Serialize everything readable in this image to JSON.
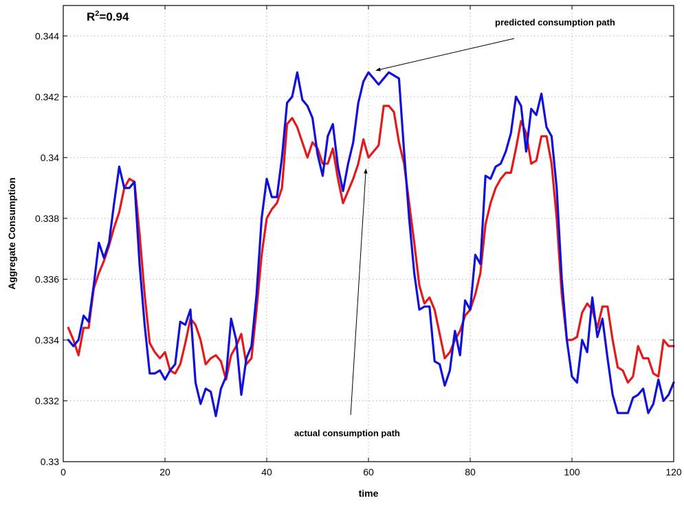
{
  "chart_data": {
    "type": "line",
    "xlabel": "time",
    "ylabel": "Aggregate Consumption",
    "xlim": [
      0,
      120
    ],
    "ylim": [
      0.33,
      0.345
    ],
    "x_ticks": [
      0,
      20,
      40,
      60,
      80,
      100,
      120
    ],
    "y_ticks": [
      0.33,
      0.332,
      0.334,
      0.336,
      0.338,
      0.34,
      0.342,
      0.344
    ],
    "y_tick_labels": [
      "0.33",
      "0.332",
      "0.334",
      "0.336",
      "0.338",
      "0.34",
      "0.342",
      "0.344"
    ],
    "grid": true,
    "r2_text": "R",
    "r2_superscript": "2",
    "r2_value": "=0.94",
    "annotations": [
      {
        "text": "predicted consumption path",
        "points_to_series": "predicted"
      },
      {
        "text": "actual consumption path",
        "points_to_series": "actual"
      }
    ],
    "series": [
      {
        "key": "actual",
        "color": "#e31a1c",
        "x": [
          1,
          2,
          3,
          4,
          5,
          6,
          7,
          8,
          9,
          10,
          11,
          12,
          13,
          14,
          15,
          16,
          17,
          18,
          19,
          20,
          21,
          22,
          23,
          24,
          25,
          26,
          27,
          28,
          29,
          30,
          31,
          32,
          33,
          34,
          35,
          36,
          37,
          38,
          39,
          40,
          41,
          42,
          43,
          44,
          45,
          46,
          47,
          48,
          49,
          50,
          51,
          52,
          53,
          54,
          55,
          56,
          57,
          58,
          59,
          60,
          61,
          62,
          63,
          64,
          65,
          66,
          67,
          68,
          69,
          70,
          71,
          72,
          73,
          74,
          75,
          76,
          77,
          78,
          79,
          80,
          81,
          82,
          83,
          84,
          85,
          86,
          87,
          88,
          89,
          90,
          91,
          92,
          93,
          94,
          95,
          96,
          97,
          98,
          99,
          100,
          101,
          102,
          103,
          104,
          105,
          106,
          107,
          108,
          109,
          110,
          111,
          112,
          113,
          114,
          115,
          116,
          117,
          118,
          119,
          120
        ],
        "values": [
          0.3344,
          0.334,
          0.3335,
          0.3344,
          0.3344,
          0.3357,
          0.3362,
          0.3366,
          0.3371,
          0.3377,
          0.3382,
          0.339,
          0.3393,
          0.3392,
          0.3375,
          0.3355,
          0.3339,
          0.3336,
          0.3334,
          0.3336,
          0.333,
          0.3329,
          0.3332,
          0.3339,
          0.3347,
          0.3345,
          0.334,
          0.3332,
          0.3334,
          0.3335,
          0.3333,
          0.3327,
          0.3335,
          0.3338,
          0.3342,
          0.3332,
          0.3334,
          0.335,
          0.3368,
          0.338,
          0.3383,
          0.3385,
          0.339,
          0.3411,
          0.3413,
          0.341,
          0.3405,
          0.34,
          0.3405,
          0.3403,
          0.3398,
          0.3398,
          0.3403,
          0.3393,
          0.3385,
          0.3389,
          0.3393,
          0.3398,
          0.3406,
          0.34,
          0.3402,
          0.3404,
          0.3417,
          0.3417,
          0.3415,
          0.3405,
          0.3398,
          0.3385,
          0.3372,
          0.3358,
          0.3352,
          0.3354,
          0.335,
          0.3342,
          0.3334,
          0.3336,
          0.334,
          0.3343,
          0.3348,
          0.335,
          0.3355,
          0.3362,
          0.3378,
          0.3385,
          0.339,
          0.3393,
          0.3395,
          0.3395,
          0.3403,
          0.3412,
          0.3408,
          0.3398,
          0.3399,
          0.3407,
          0.3407,
          0.3398,
          0.338,
          0.3355,
          0.334,
          0.334,
          0.3341,
          0.3349,
          0.3352,
          0.335,
          0.3344,
          0.3351,
          0.3351,
          0.334,
          0.3331,
          0.333,
          0.3326,
          0.3328,
          0.3338,
          0.3334,
          0.3334,
          0.3329,
          0.3328,
          0.334,
          0.3338,
          0.3338
        ]
      },
      {
        "key": "predicted",
        "color": "#1010d8",
        "x": [
          1,
          2,
          3,
          4,
          5,
          6,
          7,
          8,
          9,
          10,
          11,
          12,
          13,
          14,
          15,
          16,
          17,
          18,
          19,
          20,
          21,
          22,
          23,
          24,
          25,
          26,
          27,
          28,
          29,
          30,
          31,
          32,
          33,
          34,
          35,
          36,
          37,
          38,
          39,
          40,
          41,
          42,
          43,
          44,
          45,
          46,
          47,
          48,
          49,
          50,
          51,
          52,
          53,
          54,
          55,
          56,
          57,
          58,
          59,
          60,
          61,
          62,
          63,
          64,
          65,
          66,
          67,
          68,
          69,
          70,
          71,
          72,
          73,
          74,
          75,
          76,
          77,
          78,
          79,
          80,
          81,
          82,
          83,
          84,
          85,
          86,
          87,
          88,
          89,
          90,
          91,
          92,
          93,
          94,
          95,
          96,
          97,
          98,
          99,
          100,
          101,
          102,
          103,
          104,
          105,
          106,
          107,
          108,
          109,
          110,
          111,
          112,
          113,
          114,
          115,
          116,
          117,
          118,
          119,
          120
        ],
        "values": [
          0.334,
          0.3338,
          0.334,
          0.3348,
          0.3346,
          0.3358,
          0.3372,
          0.3367,
          0.3372,
          0.3385,
          0.3397,
          0.339,
          0.339,
          0.3392,
          0.3365,
          0.3345,
          0.3329,
          0.3329,
          0.333,
          0.3327,
          0.333,
          0.3332,
          0.3346,
          0.3345,
          0.335,
          0.3326,
          0.3319,
          0.3324,
          0.3323,
          0.3315,
          0.3324,
          0.3328,
          0.3347,
          0.334,
          0.3322,
          0.3334,
          0.3338,
          0.3355,
          0.338,
          0.3393,
          0.3387,
          0.3387,
          0.34,
          0.3418,
          0.342,
          0.3428,
          0.3419,
          0.3417,
          0.3413,
          0.3401,
          0.3394,
          0.3407,
          0.3411,
          0.3397,
          0.3389,
          0.3398,
          0.3405,
          0.3418,
          0.3425,
          0.3428,
          0.3426,
          0.3424,
          0.3426,
          0.3428,
          0.3427,
          0.3426,
          0.3402,
          0.338,
          0.3362,
          0.335,
          0.3351,
          0.3351,
          0.3333,
          0.3332,
          0.3325,
          0.333,
          0.3343,
          0.3335,
          0.3353,
          0.335,
          0.3368,
          0.3365,
          0.3394,
          0.3393,
          0.3397,
          0.3398,
          0.3402,
          0.3408,
          0.342,
          0.3417,
          0.3402,
          0.3416,
          0.3414,
          0.3421,
          0.341,
          0.3407,
          0.339,
          0.336,
          0.334,
          0.3328,
          0.3326,
          0.334,
          0.3336,
          0.3354,
          0.3341,
          0.3347,
          0.3334,
          0.3322,
          0.3316,
          0.3316,
          0.3316,
          0.3321,
          0.3322,
          0.3324,
          0.3316,
          0.3319,
          0.3327,
          0.332,
          0.3322,
          0.3326
        ]
      }
    ]
  }
}
